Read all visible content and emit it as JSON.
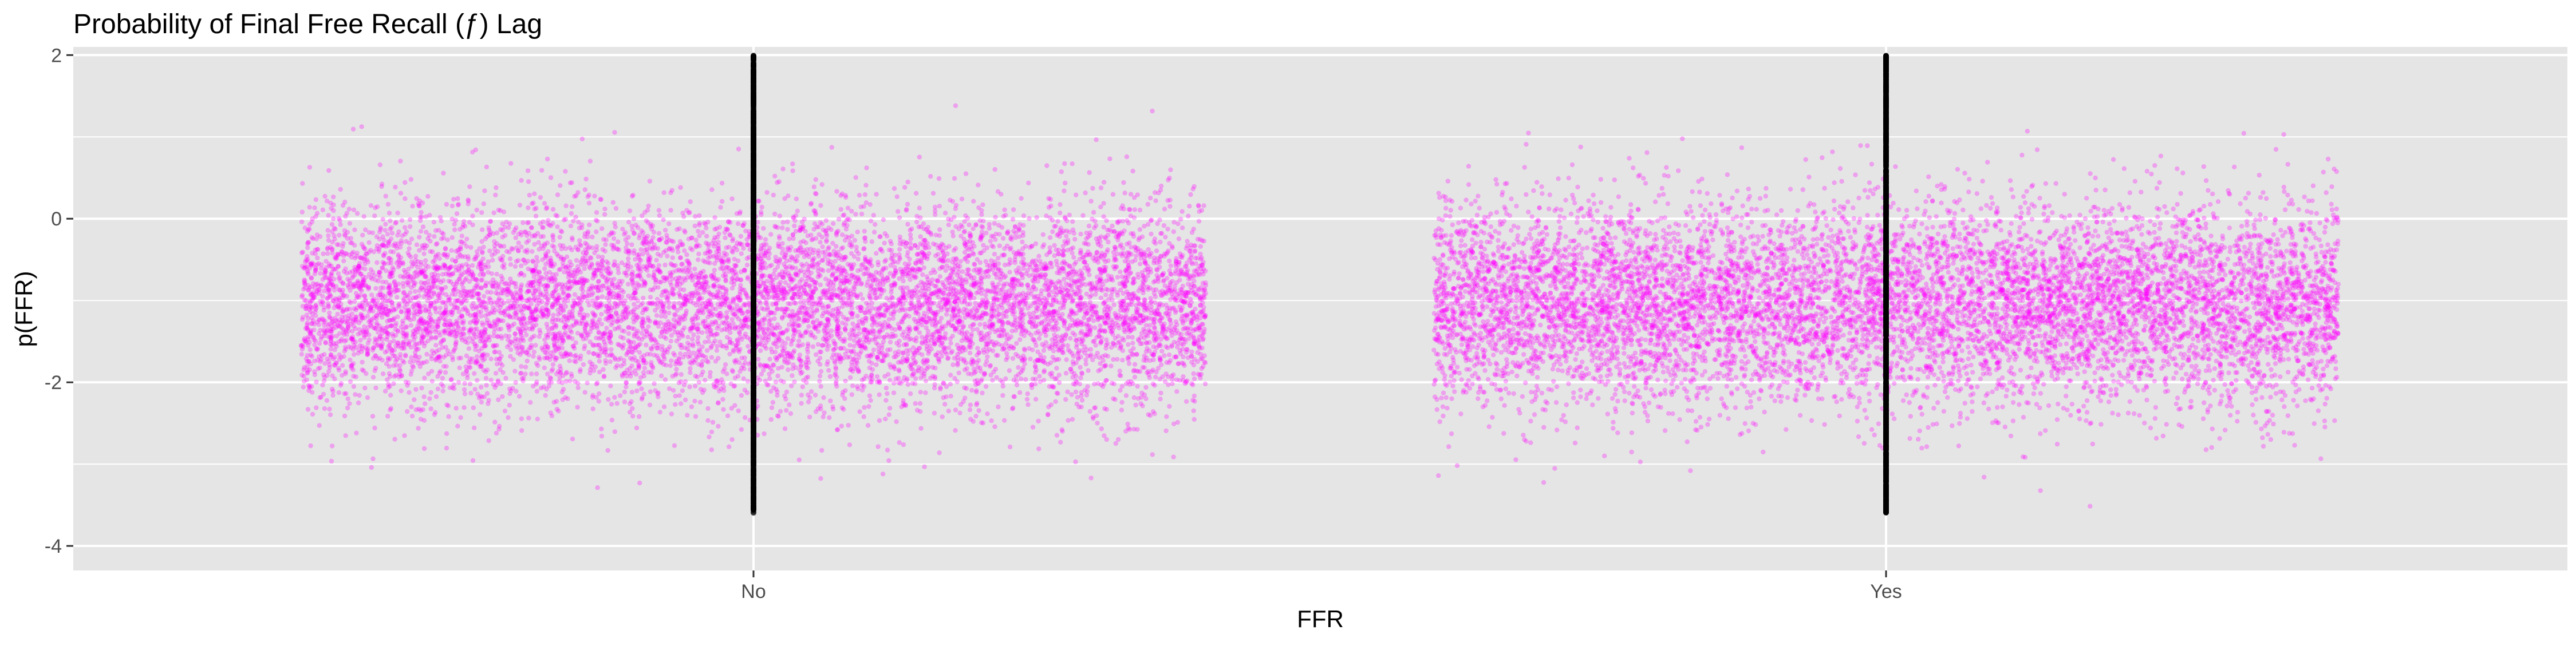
{
  "chart_data": {
    "type": "scatter",
    "title": "Probability of Final Free Recall (ƒ) Lag",
    "xlabel": "FFR",
    "ylabel": "p(FFR)",
    "categories": [
      "No",
      "Yes"
    ],
    "ylim": [
      -4.3,
      2.1
    ],
    "yticks": [
      -4,
      -2,
      0,
      2
    ],
    "grid": true,
    "panel_background": "#e5e5e5",
    "grid_color": "#ffffff",
    "series": [
      {
        "role": "jittered raw points",
        "color": "#ff00ff",
        "opacity": 0.3,
        "jitter_width": 0.4,
        "points_per_category": 9000,
        "center": -1.05,
        "spread_sd": 0.62,
        "range": [
          -3.6,
          2.0
        ]
      },
      {
        "role": "category-aligned points",
        "color": "#000000",
        "opacity": 0.6,
        "points_per_category": 1500,
        "range": [
          -3.6,
          2.0
        ]
      }
    ]
  }
}
